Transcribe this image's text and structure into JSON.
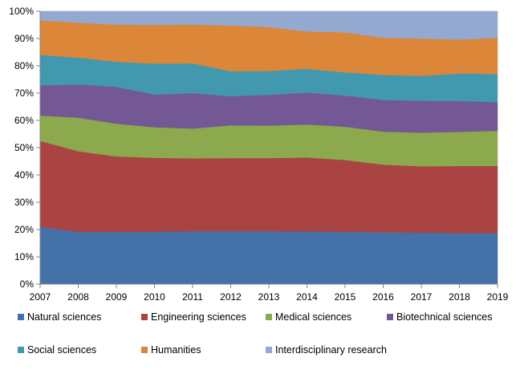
{
  "chart_data": {
    "type": "area",
    "stacked": true,
    "percent_stacked": true,
    "title": "",
    "xlabel": "",
    "ylabel": "",
    "categories": [
      "2007",
      "2008",
      "2009",
      "2010",
      "2011",
      "2012",
      "2013",
      "2014",
      "2015",
      "2016",
      "2017",
      "2018",
      "2019"
    ],
    "ylim": [
      0,
      100
    ],
    "yticks": [
      "0%",
      "10%",
      "20%",
      "30%",
      "40%",
      "50%",
      "60%",
      "70%",
      "80%",
      "90%",
      "100%"
    ],
    "grid": false,
    "legend_position": "bottom",
    "series": [
      {
        "name": "Natural sciences",
        "color": "#4472A8",
        "values": [
          21.0,
          19.2,
          19.2,
          19.2,
          19.4,
          19.4,
          19.4,
          19.3,
          19.2,
          19.0,
          18.9,
          18.7,
          18.7
        ]
      },
      {
        "name": "Engineering sciences",
        "color": "#A94442",
        "values": [
          31.5,
          29.5,
          27.6,
          27.1,
          26.7,
          26.8,
          26.8,
          27.1,
          26.3,
          24.8,
          24.3,
          24.6,
          24.6
        ]
      },
      {
        "name": "Medical sciences",
        "color": "#8CA94E",
        "values": [
          9.3,
          12.3,
          12.0,
          11.2,
          10.9,
          12.0,
          11.9,
          12.1,
          12.2,
          12.1,
          12.3,
          12.5,
          12.9
        ]
      },
      {
        "name": "Biotechnical sciences",
        "color": "#735895",
        "values": [
          11.0,
          12.2,
          13.5,
          12.0,
          13.0,
          10.7,
          11.3,
          11.7,
          11.4,
          11.6,
          11.7,
          11.3,
          10.5
        ]
      },
      {
        "name": "Social sciences",
        "color": "#4298AF",
        "values": [
          11.2,
          9.8,
          9.2,
          11.3,
          10.9,
          9.1,
          8.7,
          8.7,
          8.5,
          9.2,
          9.1,
          10.1,
          10.3
        ]
      },
      {
        "name": "Humanities",
        "color": "#DB8638",
        "values": [
          12.7,
          12.8,
          13.6,
          14.2,
          14.2,
          16.8,
          16.1,
          13.7,
          14.7,
          13.6,
          13.7,
          12.4,
          13.3
        ]
      },
      {
        "name": "Interdisciplinary research",
        "color": "#93A9CF",
        "values": [
          3.3,
          4.2,
          4.9,
          5.0,
          4.9,
          5.2,
          5.8,
          7.4,
          7.7,
          9.7,
          10.0,
          10.4,
          9.7
        ]
      }
    ]
  }
}
